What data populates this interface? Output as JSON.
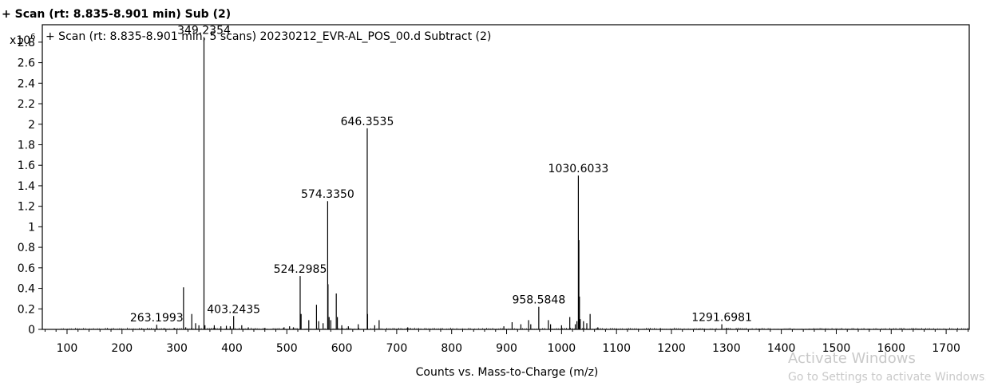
{
  "window_title": "+ Scan (rt: 8.835-8.901 min)  Sub (2)",
  "chart_data": {
    "type": "mass-spectrum",
    "title": "+ Scan (rt: 8.835-8.901 min, 5 scans) 20230212_EVR-AL_POS_00.d  Subtract (2)",
    "xlabel": "Counts vs. Mass-to-Charge (m/z)",
    "y_scale_label": "x10",
    "y_scale_exponent": "6",
    "xlim": [
      55,
      1742
    ],
    "ylim": [
      0,
      2.97
    ],
    "x_ticks": [
      100,
      200,
      300,
      400,
      500,
      600,
      700,
      800,
      900,
      1000,
      1100,
      1200,
      1300,
      1400,
      1500,
      1600,
      1700
    ],
    "y_ticks": [
      0,
      0.2,
      0.4,
      0.6,
      0.8,
      1,
      1.2,
      1.4,
      1.6,
      1.8,
      2,
      2.2,
      2.4,
      2.6,
      2.8
    ],
    "grid": false,
    "peaks": [
      {
        "mz": 120,
        "intensity": 0.004
      },
      {
        "mz": 175,
        "intensity": 0.005
      },
      {
        "mz": 236,
        "intensity": 0.012
      },
      {
        "mz": 250,
        "intensity": 0.01
      },
      {
        "mz": 263.1993,
        "intensity": 0.045
      },
      {
        "mz": 278,
        "intensity": 0.012
      },
      {
        "mz": 295,
        "intensity": 0.015
      },
      {
        "mz": 312,
        "intensity": 0.41
      },
      {
        "mz": 316,
        "intensity": 0.02
      },
      {
        "mz": 327,
        "intensity": 0.15
      },
      {
        "mz": 334,
        "intensity": 0.06
      },
      {
        "mz": 340,
        "intensity": 0.04
      },
      {
        "mz": 349.2354,
        "intensity": 2.85
      },
      {
        "mz": 351,
        "intensity": 0.04
      },
      {
        "mz": 368,
        "intensity": 0.04
      },
      {
        "mz": 380,
        "intensity": 0.03
      },
      {
        "mz": 390,
        "intensity": 0.035
      },
      {
        "mz": 397,
        "intensity": 0.03
      },
      {
        "mz": 403.2435,
        "intensity": 0.13
      },
      {
        "mz": 418,
        "intensity": 0.04
      },
      {
        "mz": 430,
        "intensity": 0.02
      },
      {
        "mz": 460,
        "intensity": 0.015
      },
      {
        "mz": 495,
        "intensity": 0.02
      },
      {
        "mz": 505,
        "intensity": 0.03
      },
      {
        "mz": 512,
        "intensity": 0.02
      },
      {
        "mz": 524.2985,
        "intensity": 0.52
      },
      {
        "mz": 526,
        "intensity": 0.15
      },
      {
        "mz": 540,
        "intensity": 0.09
      },
      {
        "mz": 554,
        "intensity": 0.24
      },
      {
        "mz": 558,
        "intensity": 0.08
      },
      {
        "mz": 566,
        "intensity": 0.06
      },
      {
        "mz": 574.335,
        "intensity": 1.25
      },
      {
        "mz": 575,
        "intensity": 0.44
      },
      {
        "mz": 577,
        "intensity": 0.12
      },
      {
        "mz": 580,
        "intensity": 0.09
      },
      {
        "mz": 590,
        "intensity": 0.35
      },
      {
        "mz": 592,
        "intensity": 0.12
      },
      {
        "mz": 600,
        "intensity": 0.04
      },
      {
        "mz": 612,
        "intensity": 0.03
      },
      {
        "mz": 630,
        "intensity": 0.05
      },
      {
        "mz": 646.3535,
        "intensity": 1.96
      },
      {
        "mz": 647,
        "intensity": 0.15
      },
      {
        "mz": 660,
        "intensity": 0.04
      },
      {
        "mz": 668,
        "intensity": 0.09
      },
      {
        "mz": 720,
        "intensity": 0.02
      },
      {
        "mz": 895,
        "intensity": 0.03
      },
      {
        "mz": 910,
        "intensity": 0.07
      },
      {
        "mz": 926,
        "intensity": 0.05
      },
      {
        "mz": 940,
        "intensity": 0.09
      },
      {
        "mz": 944,
        "intensity": 0.05
      },
      {
        "mz": 958.5848,
        "intensity": 0.22
      },
      {
        "mz": 976,
        "intensity": 0.09
      },
      {
        "mz": 980,
        "intensity": 0.05
      },
      {
        "mz": 1000,
        "intensity": 0.04
      },
      {
        "mz": 1015,
        "intensity": 0.12
      },
      {
        "mz": 1025,
        "intensity": 0.05
      },
      {
        "mz": 1028,
        "intensity": 0.08
      },
      {
        "mz": 1030.6033,
        "intensity": 1.5
      },
      {
        "mz": 1031.6,
        "intensity": 0.87
      },
      {
        "mz": 1032.6,
        "intensity": 0.32
      },
      {
        "mz": 1034,
        "intensity": 0.1
      },
      {
        "mz": 1040,
        "intensity": 0.08
      },
      {
        "mz": 1046,
        "intensity": 0.06
      },
      {
        "mz": 1052,
        "intensity": 0.15
      },
      {
        "mz": 1066,
        "intensity": 0.02
      },
      {
        "mz": 1100,
        "intensity": 0.01
      },
      {
        "mz": 1180,
        "intensity": 0.01
      },
      {
        "mz": 1250,
        "intensity": 0.008
      },
      {
        "mz": 1291.6981,
        "intensity": 0.05
      },
      {
        "mz": 1300,
        "intensity": 0.015
      },
      {
        "mz": 1360,
        "intensity": 0.008
      },
      {
        "mz": 1450,
        "intensity": 0.006
      },
      {
        "mz": 1560,
        "intensity": 0.005
      },
      {
        "mz": 1650,
        "intensity": 0.006
      }
    ],
    "peak_labels": [
      {
        "mz": 349.2354,
        "intensity": 2.85,
        "text": "349.2354"
      },
      {
        "mz": 646.3535,
        "intensity": 1.96,
        "text": "646.3535"
      },
      {
        "mz": 1030.6033,
        "intensity": 1.5,
        "text": "1030.6033"
      },
      {
        "mz": 574.335,
        "intensity": 1.25,
        "text": "574.3350"
      },
      {
        "mz": 524.2985,
        "intensity": 0.52,
        "text": "524.2985"
      },
      {
        "mz": 958.5848,
        "intensity": 0.22,
        "text": "958.5848"
      },
      {
        "mz": 403.2435,
        "intensity": 0.13,
        "text": "403.2435"
      },
      {
        "mz": 263.1993,
        "intensity": 0.045,
        "text": "263.1993"
      },
      {
        "mz": 1291.6981,
        "intensity": 0.05,
        "text": "1291.6981"
      }
    ]
  },
  "watermark": {
    "line1": "Activate Windows",
    "line2": "Go to Settings to activate Windows."
  }
}
